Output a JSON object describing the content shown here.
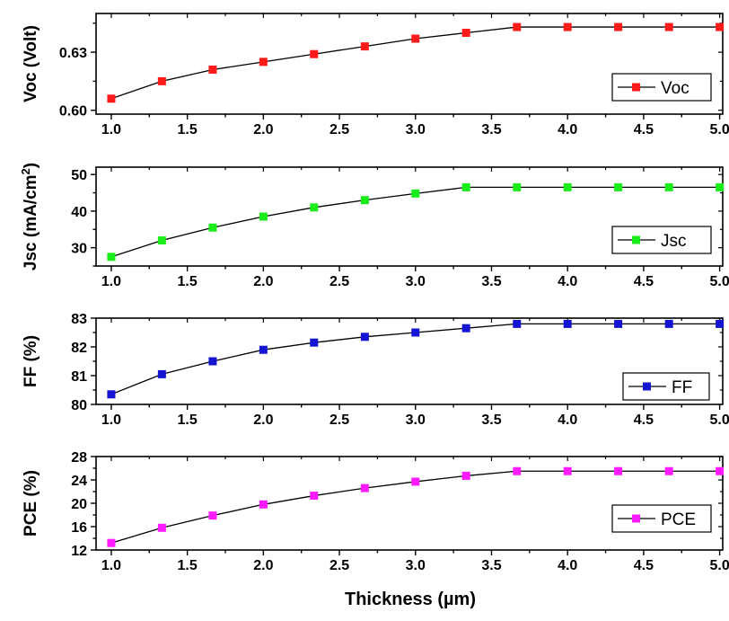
{
  "chart_data": [
    {
      "type": "line",
      "series": [
        {
          "name": "Voc",
          "color": "#ff1a1a",
          "x": [
            1.0,
            1.333,
            1.667,
            2.0,
            2.333,
            2.667,
            3.0,
            3.333,
            3.667,
            4.0,
            4.333,
            4.667,
            5.0
          ],
          "values": [
            0.606,
            0.615,
            0.621,
            0.625,
            0.629,
            0.633,
            0.637,
            0.64,
            0.643,
            0.643,
            0.643,
            0.643,
            0.643
          ]
        }
      ],
      "ylabel": "Voc (Volt)",
      "ylabel_superscript": "",
      "ylim": [
        0.598,
        0.65
      ],
      "yticks": [
        0.6,
        0.63
      ],
      "ytick_labels": [
        "0.60",
        "0.63"
      ],
      "xlim": [
        0.9,
        5.02
      ],
      "xticks": [
        1.0,
        1.5,
        2.0,
        2.5,
        3.0,
        3.5,
        4.0,
        4.5,
        5.0
      ],
      "xtick_labels": [
        "1.0",
        "1.5",
        "2.0",
        "2.5",
        "3.0",
        "3.5",
        "4.0",
        "4.5",
        "5.0"
      ],
      "legend": "bottom-right"
    },
    {
      "type": "line",
      "series": [
        {
          "name": "Jsc",
          "color": "#1aee1a",
          "x": [
            1.0,
            1.333,
            1.667,
            2.0,
            2.333,
            2.667,
            3.0,
            3.333,
            3.667,
            4.0,
            4.333,
            4.667,
            5.0
          ],
          "values": [
            27.5,
            32.0,
            35.5,
            38.5,
            41.0,
            43.0,
            44.8,
            46.5,
            46.5,
            46.5,
            46.5,
            46.5,
            46.5
          ]
        }
      ],
      "ylabel": "Jsc (mA/cm",
      "ylabel_superscript": "2",
      "ylabel_suffix": ")",
      "ylim": [
        25,
        52
      ],
      "yticks": [
        30,
        40,
        50
      ],
      "ytick_labels": [
        "30",
        "40",
        "50"
      ],
      "xlim": [
        0.9,
        5.02
      ],
      "xticks": [
        1.0,
        1.5,
        2.0,
        2.5,
        3.0,
        3.5,
        4.0,
        4.5,
        5.0
      ],
      "xtick_labels": [
        "1.0",
        "1.5",
        "2.0",
        "2.5",
        "3.0",
        "3.5",
        "4.0",
        "4.5",
        "5.0"
      ],
      "legend": "bottom-right"
    },
    {
      "type": "line",
      "series": [
        {
          "name": "FF",
          "color": "#1414d2",
          "x": [
            1.0,
            1.333,
            1.667,
            2.0,
            2.333,
            2.667,
            3.0,
            3.333,
            3.667,
            4.0,
            4.333,
            4.667,
            5.0
          ],
          "values": [
            80.35,
            81.05,
            81.5,
            81.9,
            82.15,
            82.35,
            82.5,
            82.65,
            82.8,
            82.8,
            82.8,
            82.8,
            82.8
          ]
        }
      ],
      "ylabel": "FF (%)",
      "ylabel_superscript": "",
      "ylim": [
        80,
        83
      ],
      "yticks": [
        80,
        81,
        82,
        83
      ],
      "ytick_labels": [
        "80",
        "81",
        "82",
        "83"
      ],
      "xlim": [
        0.9,
        5.02
      ],
      "xticks": [
        1.0,
        1.5,
        2.0,
        2.5,
        3.0,
        3.5,
        4.0,
        4.5,
        5.0
      ],
      "xtick_labels": [
        "1.0",
        "1.5",
        "2.0",
        "2.5",
        "3.0",
        "3.5",
        "4.0",
        "4.5",
        "5.0"
      ],
      "legend": "bottom-right"
    },
    {
      "type": "line",
      "series": [
        {
          "name": "PCE",
          "color": "#ff1aff",
          "x": [
            1.0,
            1.333,
            1.667,
            2.0,
            2.333,
            2.667,
            3.0,
            3.333,
            3.667,
            4.0,
            4.333,
            4.667,
            5.0
          ],
          "values": [
            13.2,
            15.8,
            17.9,
            19.8,
            21.3,
            22.6,
            23.7,
            24.7,
            25.5,
            25.5,
            25.5,
            25.5,
            25.5
          ]
        }
      ],
      "ylabel": "PCE (%)",
      "ylabel_superscript": "",
      "ylim": [
        12,
        28
      ],
      "yticks": [
        12,
        16,
        20,
        24,
        28
      ],
      "ytick_labels": [
        "12",
        "16",
        "20",
        "24",
        "28"
      ],
      "xlim": [
        0.9,
        5.02
      ],
      "xticks": [
        1.0,
        1.5,
        2.0,
        2.5,
        3.0,
        3.5,
        4.0,
        4.5,
        5.0
      ],
      "xtick_labels": [
        "1.0",
        "1.5",
        "2.0",
        "2.5",
        "3.0",
        "3.5",
        "4.0",
        "4.5",
        "5.0"
      ],
      "legend": "bottom-right"
    }
  ],
  "xlabel": "Thickness (µm)"
}
